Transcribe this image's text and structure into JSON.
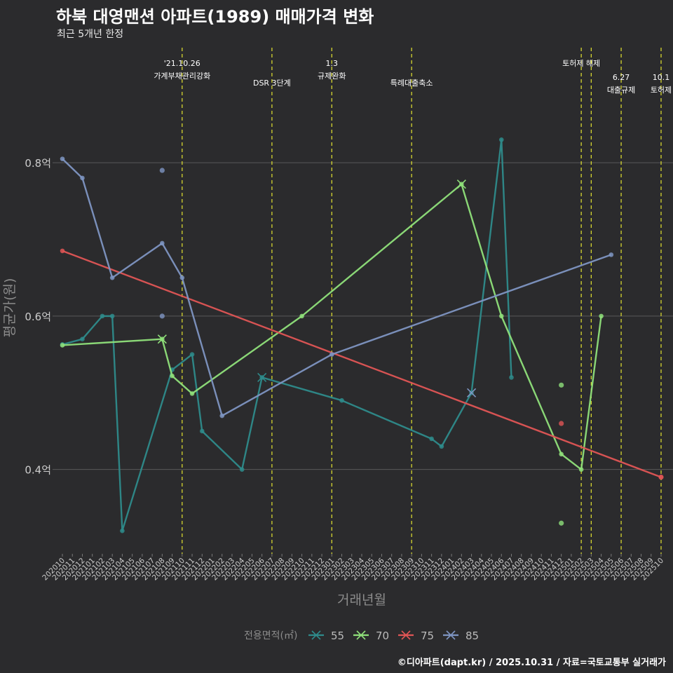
{
  "title": "하북 대영맨션 아파트(1989) 매매가격 변화",
  "subtitle": "최근 5개년 한정",
  "caption": "©디아파트(dapt.kr) / 2025.10.31 / 자료=국토교통부 실거래가",
  "colors": {
    "background": "#2b2b2d",
    "grid": "#5a5a5a",
    "vline": "#d6d630",
    "text": "#cccccc",
    "axis_title": "#8c8c8c"
  },
  "chart_data": {
    "type": "line",
    "title": "하북 대영맨션 아파트(1989) 매매가격 변화",
    "xlabel": "거래년월",
    "ylabel": "평균가(원)",
    "ylim": [
      0.29,
      0.95
    ],
    "yticks": [
      {
        "value": 0.4,
        "label": "0.4억"
      },
      {
        "value": 0.6,
        "label": "0.6억"
      },
      {
        "value": 0.8,
        "label": "0.8억"
      }
    ],
    "categories": [
      "202010",
      "202011",
      "202012",
      "202101",
      "202102",
      "202103",
      "202104",
      "202105",
      "202106",
      "202107",
      "202108",
      "202109",
      "202110",
      "202111",
      "202112",
      "202201",
      "202202",
      "202203",
      "202204",
      "202205",
      "202206",
      "202207",
      "202208",
      "202209",
      "202210",
      "202211",
      "202212",
      "202301",
      "202302",
      "202303",
      "202304",
      "202305",
      "202306",
      "202307",
      "202308",
      "202309",
      "202310",
      "202311",
      "202312",
      "202401",
      "202402",
      "202403",
      "202404",
      "202405",
      "202406",
      "202407",
      "202408",
      "202409",
      "202410",
      "202411",
      "202412",
      "202501",
      "202502",
      "202503",
      "202504",
      "202505",
      "202506",
      "202507",
      "202508",
      "202509",
      "202510"
    ],
    "legend_title": "전용면적(㎡)",
    "series": [
      {
        "name": "55",
        "color": "#2e8b8b",
        "points": [
          [
            "202010",
            0.563
          ],
          [
            "202012",
            0.57
          ],
          [
            "202102",
            0.6
          ],
          [
            "202103",
            0.6
          ],
          [
            "202104",
            0.32
          ],
          [
            "202109",
            0.53
          ],
          [
            "202111",
            0.55
          ],
          [
            "202112",
            0.45
          ],
          [
            "202204",
            0.4
          ],
          [
            "202206",
            0.52
          ],
          [
            "202302",
            0.49
          ],
          [
            "202311",
            0.44
          ],
          [
            "202312",
            0.43
          ],
          [
            "202403",
            0.5
          ],
          [
            "202406",
            0.83
          ],
          [
            "202407",
            0.52
          ]
        ]
      },
      {
        "name": "70",
        "color": "#8fe07a",
        "points": [
          [
            "202010",
            0.562
          ],
          [
            "202108",
            0.57
          ],
          [
            "202109",
            0.522
          ],
          [
            "202111",
            0.499
          ],
          [
            "202210",
            0.6
          ],
          [
            "202402",
            0.772
          ],
          [
            "202406",
            0.6
          ],
          [
            "202412",
            0.42
          ],
          [
            "202502",
            0.4
          ],
          [
            "202504",
            0.6
          ]
        ]
      },
      {
        "name": "75",
        "color": "#e05555",
        "points": [
          [
            "202010",
            0.685
          ],
          [
            "202510",
            0.39
          ]
        ]
      },
      {
        "name": "85",
        "color": "#7e95c2",
        "points": [
          [
            "202010",
            0.805
          ],
          [
            "202012",
            0.78
          ],
          [
            "202103",
            0.65
          ],
          [
            "202108",
            0.695
          ],
          [
            "202110",
            0.65
          ],
          [
            "202202",
            0.47
          ],
          [
            "202301",
            0.55
          ],
          [
            "202505",
            0.68
          ]
        ]
      }
    ],
    "scatter_points": [
      {
        "series": "85",
        "x": "202108",
        "y": 0.79
      },
      {
        "series": "85",
        "x": "202108",
        "y": 0.6
      },
      {
        "series": "70",
        "x": "202412",
        "y": 0.51
      },
      {
        "series": "70",
        "x": "202412",
        "y": 0.33
      },
      {
        "series": "75",
        "x": "202412",
        "y": 0.46
      },
      {
        "series": "75",
        "x": "202510",
        "y": 0.39
      }
    ],
    "events": [
      {
        "x": "202110",
        "lines": [
          "'21.10.26",
          "가계부채관리강화"
        ],
        "row": 1
      },
      {
        "x": "202207",
        "lines": [
          "DSR 3단계"
        ],
        "row": 2
      },
      {
        "x": "202301",
        "lines": [
          "1.3",
          "규제완화"
        ],
        "row": 1
      },
      {
        "x": "202309",
        "lines": [
          "특례대출축소"
        ],
        "row": 2
      },
      {
        "x": "202502",
        "lines": [
          "토허제 해제"
        ],
        "row": 1
      },
      {
        "x": "202503",
        "lines": [],
        "row": 1
      },
      {
        "x": "202506",
        "lines": [
          "6.27",
          "대출규제"
        ],
        "row": 2
      },
      {
        "x": "202510",
        "lines": [
          "10.1",
          "토허제"
        ],
        "row": 2
      }
    ]
  }
}
